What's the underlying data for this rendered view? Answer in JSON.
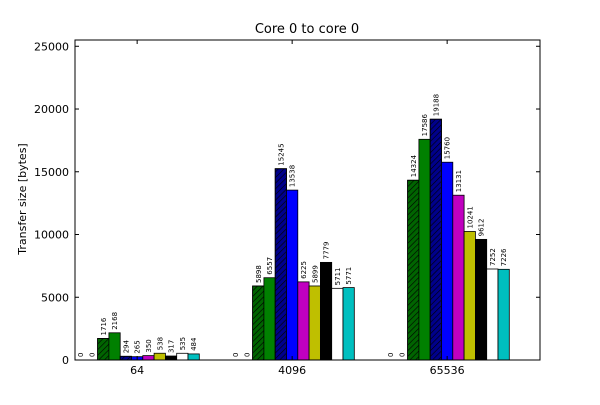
{
  "chart_data": {
    "type": "bar",
    "title": "Core 0 to core 0",
    "xlabel": "",
    "ylabel": "Transfer size [bytes]",
    "ylim": [
      0,
      25500
    ],
    "yticks": [
      0,
      5000,
      10000,
      15000,
      20000,
      25000
    ],
    "yticklabels": [
      "0",
      "5000",
      "10000",
      "15000",
      "20000",
      "25000"
    ],
    "categories": [
      "64",
      "4096",
      "65536"
    ],
    "grid": false,
    "series": [
      {
        "values": [
          0,
          0,
          0
        ],
        "color": "#ffffff",
        "hatch": false
      },
      {
        "values": [
          0,
          0,
          0
        ],
        "color": "#ffffff",
        "hatch": false
      },
      {
        "values": [
          1716,
          5898,
          14324
        ],
        "color": "#006400",
        "hatch": true
      },
      {
        "values": [
          2168,
          6557,
          17586
        ],
        "color": "#008000",
        "hatch": false
      },
      {
        "values": [
          294,
          15245,
          19188
        ],
        "color": "#00008b",
        "hatch": true
      },
      {
        "values": [
          265,
          13538,
          15760
        ],
        "color": "#0000ff",
        "hatch": false
      },
      {
        "values": [
          350,
          6225,
          13131
        ],
        "color": "#c000c0",
        "hatch": false
      },
      {
        "values": [
          538,
          5899,
          10241
        ],
        "color": "#bfbf00",
        "hatch": false
      },
      {
        "values": [
          317,
          7779,
          9612
        ],
        "color": "#000000",
        "hatch": false
      },
      {
        "values": [
          535,
          5711,
          7252
        ],
        "color": "#ffffff",
        "hatch": false
      },
      {
        "values": [
          484,
          5771,
          7226
        ],
        "color": "#00bfbf",
        "hatch": false
      }
    ]
  }
}
